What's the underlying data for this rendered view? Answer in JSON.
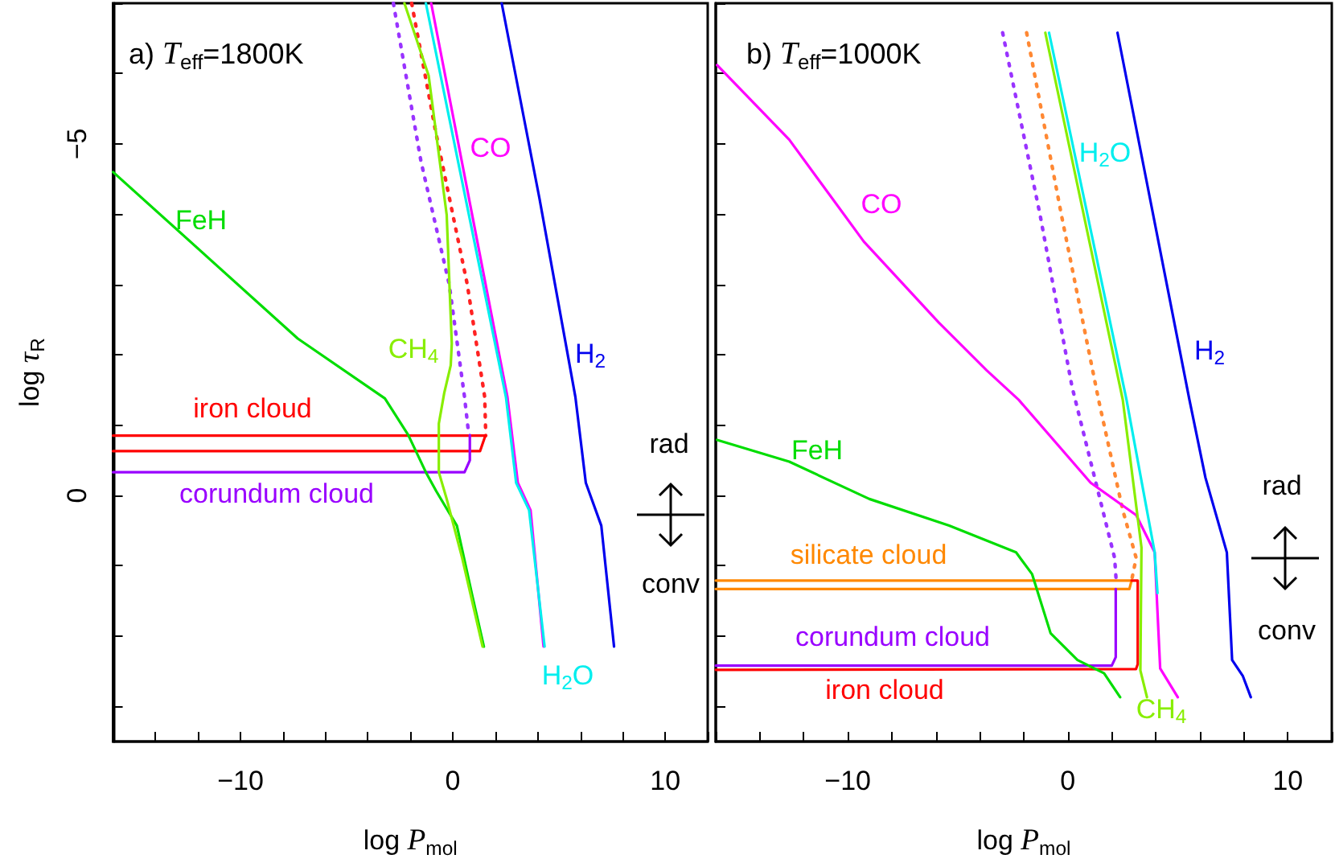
{
  "chart_data": [
    {
      "type": "line",
      "title": "a) T$_{eff}$=1800K",
      "xlabel": "log P$_{mol}$",
      "ylabel": "log τ$_{R}$",
      "marker": "none",
      "grid": false,
      "xlim": [
        -16,
        12
      ],
      "xticks": [
        {
          "value": -16,
          "label": null
        },
        {
          "value": -14,
          "label": null
        },
        {
          "value": -12,
          "label": null
        },
        -10,
        {
          "value": -8,
          "label": null
        },
        {
          "value": -6,
          "label": null
        },
        {
          "value": -4,
          "label": null
        },
        {
          "value": -2,
          "label": null
        },
        0,
        {
          "value": 2,
          "label": null
        },
        {
          "value": 4,
          "label": null
        },
        {
          "value": 6,
          "label": null
        },
        {
          "value": 8,
          "label": null
        },
        10,
        {
          "value": 12,
          "label": null
        }
      ],
      "ylim": [
        3.5,
        -7
      ],
      "yticks": [
        {
          "value": -7,
          "label": null
        },
        {
          "value": -6,
          "label": null
        },
        -5,
        {
          "value": -4,
          "label": null
        },
        {
          "value": -3,
          "label": null
        },
        {
          "value": -2,
          "label": null
        },
        {
          "value": -1,
          "label": null
        },
        0,
        {
          "value": 1,
          "label": null
        },
        {
          "value": 2,
          "label": null
        },
        {
          "value": 3,
          "label": null
        }
      ],
      "series": [
        {
          "color": "#9933ff",
          "line_style": "dotted",
          "x": [
            -2.8,
            -1.5,
            -0.17,
            0.55,
            0.75
          ],
          "values": [
            -7,
            -4.75,
            -3.0,
            -1.4,
            -0.86
          ]
        },
        {
          "color": "#ff2222",
          "line_style": "dotted",
          "x": [
            -1.94,
            -0.78,
            0.68,
            1.5,
            1.55
          ],
          "values": [
            -7,
            -5.13,
            -3.0,
            -1.4,
            -0.85
          ]
        },
        {
          "color": "#ff0000",
          "x": [
            -16,
            1.53,
            1.28,
            -16
          ],
          "values": [
            -0.85,
            -0.85,
            -0.63,
            -0.63
          ]
        },
        {
          "color": "#9900ff",
          "x": [
            -16,
            0.55,
            0.8,
            0.8
          ],
          "values": [
            -0.33,
            -0.33,
            -0.5,
            -0.86
          ]
        },
        {
          "color": "#00dd00",
          "x": [
            -16,
            -7.3,
            -3.2,
            -2.1,
            -1.27,
            -0.78,
            0.19,
            0.92,
            1.46
          ],
          "values": [
            -4.6,
            -2.23,
            -1.38,
            -0.86,
            -0.33,
            -0.06,
            0.43,
            1.43,
            2.15
          ]
        },
        {
          "color": "#88ee00",
          "x": [
            -2.28,
            -1.14,
            -0.29,
            -0.05,
            -0.1,
            -0.41,
            -0.66,
            -0.66,
            -0.29,
            0.44,
            1.4
          ],
          "values": [
            -7,
            -5.97,
            -3.99,
            -2.16,
            -1.85,
            -1.45,
            -1.02,
            -0.33,
            0.05,
            0.89,
            2.15
          ]
        },
        {
          "color": "#ff00ff",
          "x": [
            -1.02,
            2.57,
            3.06,
            3.66,
            4.27
          ],
          "values": [
            -7,
            -1.4,
            -0.18,
            0.21,
            2.15
          ]
        },
        {
          "color": "#00eeee",
          "x": [
            -1.27,
            2.5,
            2.98,
            3.59,
            4.32
          ],
          "values": [
            -7,
            -1.4,
            -0.18,
            0.21,
            2.15
          ]
        },
        {
          "color": "#0000ee",
          "x": [
            2.3,
            4.08,
            5.77,
            6.26,
            6.99,
            7.59
          ],
          "values": [
            -7,
            -4.22,
            -1.4,
            -0.18,
            0.43,
            2.15
          ]
        }
      ],
      "annotations": [
        "FeH",
        "CO",
        "CH$_{4}$",
        "H$_{2}$",
        "iron cloud",
        "corundum cloud",
        "H$_{2}$O",
        "rad",
        "conv"
      ]
    },
    {
      "type": "line",
      "title": "b) T$_{eff}$=1000K",
      "xlabel": "log P$_{mol}$",
      "marker": "none",
      "grid": false,
      "tick_labels": "x",
      "xlim": [
        -16,
        12
      ],
      "xticks": [
        {
          "value": -16,
          "label": null
        },
        {
          "value": -14,
          "label": null
        },
        {
          "value": -12,
          "label": null
        },
        -10,
        {
          "value": -8,
          "label": null
        },
        {
          "value": -6,
          "label": null
        },
        {
          "value": -4,
          "label": null
        },
        {
          "value": -2,
          "label": null
        },
        0,
        {
          "value": 2,
          "label": null
        },
        {
          "value": 4,
          "label": null
        },
        {
          "value": 6,
          "label": null
        },
        {
          "value": 8,
          "label": null
        },
        10,
        {
          "value": 12,
          "label": null
        }
      ],
      "ylim": [
        3.5,
        -7
      ],
      "yticks": [
        {
          "value": -7,
          "label": null
        },
        {
          "value": -6,
          "label": null
        },
        {
          "value": -5,
          "label": null
        },
        {
          "value": -4,
          "label": null
        },
        {
          "value": -3,
          "label": null
        },
        {
          "value": -2,
          "label": null
        },
        {
          "value": -1,
          "label": null
        },
        {
          "value": 0,
          "label": null
        },
        {
          "value": 1,
          "label": null
        },
        {
          "value": 2,
          "label": null
        },
        {
          "value": 3,
          "label": null
        }
      ],
      "series": [
        {
          "color": "#9933ff",
          "line_style": "dotted",
          "x": [
            -2.96,
            -1.26,
            0.19,
            2.13,
            2.2
          ],
          "values": [
            -6.58,
            -3.99,
            -1.55,
            0.89,
            1.21
          ]
        },
        {
          "color": "#ff8833",
          "line_style": "dotted",
          "x": [
            -1.87,
            -0.29,
            1.4,
            2.5,
            3.11,
            2.9
          ],
          "values": [
            -6.58,
            -3.99,
            -1.36,
            0.21,
            0.89,
            1.21
          ]
        },
        {
          "color": "#ff8800",
          "x": [
            -16,
            2.9,
            2.8,
            -16
          ],
          "values": [
            1.21,
            1.21,
            1.33,
            1.33
          ]
        },
        {
          "color": "#9900ff",
          "x": [
            -16,
            2.0,
            2.18,
            2.18
          ],
          "values": [
            2.42,
            2.42,
            2.3,
            1.33
          ]
        },
        {
          "color": "#ff0000",
          "x": [
            -16,
            3.1,
            3.18,
            3.18,
            2.9
          ],
          "values": [
            2.48,
            2.47,
            2.4,
            1.21,
            1.21
          ]
        },
        {
          "color": "#ff00ff",
          "x": [
            -15.94,
            -12.66,
            -9.27,
            -5.87,
            -3.69,
            -2.23,
            1.04,
            3.11,
            3.95,
            4.2,
            5.0
          ],
          "values": [
            -6.12,
            -5.06,
            -3.61,
            -2.46,
            -1.78,
            -1.36,
            -0.18,
            0.28,
            0.81,
            2.46,
            2.87
          ]
        },
        {
          "color": "#00dd00",
          "x": [
            -15.94,
            -12.66,
            -9.02,
            -5.39,
            -2.35,
            -1.62,
            -0.78,
            0.44,
            1.65,
            2.38
          ],
          "values": [
            -0.79,
            -0.48,
            0.05,
            0.43,
            0.81,
            1.12,
            1.96,
            2.34,
            2.53,
            2.87
          ]
        },
        {
          "color": "#88ee00",
          "x": [
            -1.02,
            2.5,
            3.35,
            3.3,
            3.6
          ],
          "values": [
            -6.58,
            -1.36,
            0.74,
            2.49,
            2.87
          ]
        },
        {
          "color": "#00eeee",
          "x": [
            -0.85,
            2.67,
            3.95,
            4.08
          ],
          "values": [
            -6.58,
            -1.36,
            0.81,
            1.39
          ]
        },
        {
          "color": "#0000ee",
          "x": [
            2.26,
            5.53,
            6.26,
            7.23,
            7.47,
            7.96,
            8.32
          ],
          "values": [
            -6.58,
            -1.36,
            -0.25,
            0.81,
            2.34,
            2.57,
            2.87
          ]
        }
      ],
      "annotations": [
        "CO",
        "H$_{2}$O",
        "H$_{2}$",
        "FeH",
        "silicate cloud",
        "corundum cloud",
        "iron cloud",
        "CH$_{4}$",
        "rad",
        "conv"
      ]
    }
  ]
}
